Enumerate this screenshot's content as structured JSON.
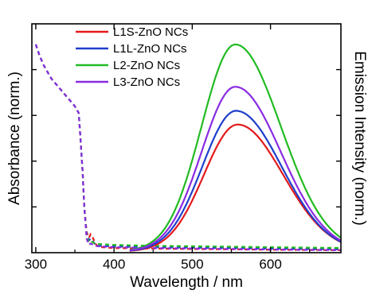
{
  "chart_data": {
    "type": "line",
    "xlabel": "Wavelength / nm",
    "ylabel_left": "Absorbance (norm.)",
    "ylabel_right": "Emission Intensity (norm.)",
    "xlim": [
      295,
      690
    ],
    "ylim": [
      0,
      1.0
    ],
    "x_ticks": [
      300,
      400,
      500,
      600
    ],
    "grid": false,
    "legend_position": "top-left",
    "absorbance_series": [
      {
        "name": "L1S-ZnO NCs",
        "color": "#e41a1c",
        "x": [
          300,
          305,
          310,
          315,
          320,
          325,
          330,
          335,
          340,
          345,
          350,
          355,
          360,
          362,
          365,
          368,
          370,
          373,
          376,
          380,
          400,
          450,
          500,
          550,
          600,
          650,
          690
        ],
        "y": [
          0.91,
          0.86,
          0.82,
          0.79,
          0.76,
          0.74,
          0.72,
          0.7,
          0.68,
          0.66,
          0.64,
          0.61,
          0.35,
          0.2,
          0.09,
          0.065,
          0.08,
          0.065,
          0.04,
          0.025,
          0.02,
          0.018,
          0.016,
          0.015,
          0.013,
          0.012,
          0.011
        ]
      },
      {
        "name": "L1L-ZnO NCs",
        "color": "#1f3fcc",
        "x": [
          300,
          305,
          310,
          315,
          320,
          325,
          330,
          335,
          340,
          345,
          350,
          355,
          360,
          362,
          365,
          368,
          370,
          373,
          376,
          380,
          400,
          450,
          500,
          550,
          600,
          650,
          690
        ],
        "y": [
          0.91,
          0.86,
          0.82,
          0.79,
          0.76,
          0.74,
          0.72,
          0.7,
          0.68,
          0.66,
          0.64,
          0.61,
          0.35,
          0.2,
          0.08,
          0.055,
          0.06,
          0.05,
          0.035,
          0.03,
          0.027,
          0.024,
          0.022,
          0.02,
          0.018,
          0.016,
          0.015
        ]
      },
      {
        "name": "L2-ZnO NCs",
        "color": "#22bb22",
        "x": [
          300,
          305,
          310,
          315,
          320,
          325,
          330,
          335,
          340,
          345,
          350,
          355,
          360,
          362,
          365,
          368,
          370,
          373,
          376,
          380,
          400,
          450,
          500,
          550,
          600,
          650,
          690
        ],
        "y": [
          0.91,
          0.86,
          0.82,
          0.79,
          0.76,
          0.74,
          0.72,
          0.7,
          0.68,
          0.66,
          0.64,
          0.61,
          0.35,
          0.2,
          0.07,
          0.045,
          0.05,
          0.045,
          0.04,
          0.038,
          0.034,
          0.03,
          0.028,
          0.026,
          0.024,
          0.022,
          0.021
        ]
      },
      {
        "name": "L3-ZnO NCs",
        "color": "#8a2be2",
        "x": [
          300,
          305,
          310,
          315,
          320,
          325,
          330,
          335,
          340,
          345,
          350,
          355,
          360,
          362,
          365,
          368,
          370,
          373,
          376,
          380,
          400,
          450,
          500,
          550,
          600,
          650,
          690
        ],
        "y": [
          0.91,
          0.86,
          0.82,
          0.79,
          0.76,
          0.74,
          0.72,
          0.7,
          0.68,
          0.66,
          0.64,
          0.61,
          0.35,
          0.2,
          0.06,
          0.035,
          0.04,
          0.035,
          0.03,
          0.028,
          0.024,
          0.02,
          0.018,
          0.016,
          0.014,
          0.012,
          0.011
        ]
      }
    ],
    "emission_series": [
      {
        "name": "L1S-ZnO NCs",
        "color": "#e41a1c",
        "peak_x": 558,
        "peak_y": 0.555
      },
      {
        "name": "L1L-ZnO NCs",
        "color": "#1f3fcc",
        "peak_x": 556,
        "peak_y": 0.615
      },
      {
        "name": "L2-ZnO NCs",
        "color": "#22bb22",
        "peak_x": 555,
        "peak_y": 0.905
      },
      {
        "name": "L3-ZnO NCs",
        "color": "#8a2be2",
        "peak_x": 555,
        "peak_y": 0.72
      }
    ]
  }
}
